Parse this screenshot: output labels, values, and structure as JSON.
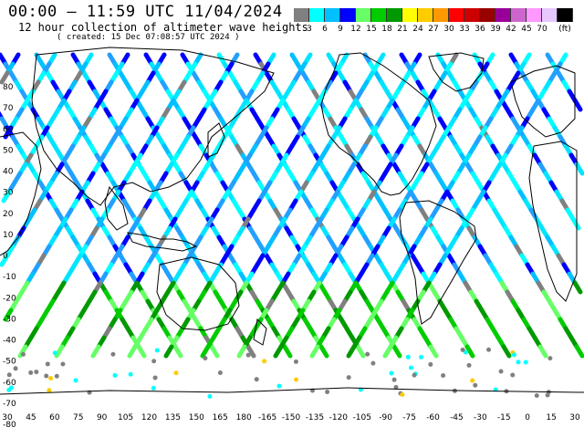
{
  "header": {
    "title": "00:00 – 11:59 UTC 11/04/2024",
    "subtitle": "12 hour collection of altimeter wave heights",
    "created": "( created: 15 Dec 07:08:57 UTC 2024 )"
  },
  "legend": {
    "unit": "(ft)",
    "colors": [
      "#808080",
      "#00ffff",
      "#00c0ff",
      "#0000ff",
      "#66ff66",
      "#00cc00",
      "#009900",
      "#ffff00",
      "#ffcc00",
      "#ff9900",
      "#ff0000",
      "#cc0000",
      "#990000",
      "#990099",
      "#cc66cc",
      "#ff99ff",
      "#e6c8ff",
      "#000000"
    ],
    "labels": [
      "3",
      "6",
      "9",
      "12",
      "15",
      "18",
      "21",
      "24",
      "27",
      "30",
      "33",
      "36",
      "39",
      "42",
      "45",
      "70"
    ]
  },
  "map": {
    "x_ticks": [
      "30",
      "45",
      "60",
      "75",
      "90",
      "105",
      "120",
      "135",
      "150",
      "165",
      "180",
      "-165",
      "-150",
      "-135",
      "-120",
      "-105",
      "-90",
      "-75",
      "-60",
      "-45",
      "-30",
      "-15",
      "0",
      "15",
      "30"
    ],
    "y_ticks": [
      "80",
      "70",
      "60",
      "50",
      "40",
      "30",
      "20",
      "10",
      "0",
      "-10",
      "-20",
      "-30",
      "-40",
      "-50",
      "-60",
      "-70",
      "-80"
    ]
  }
}
